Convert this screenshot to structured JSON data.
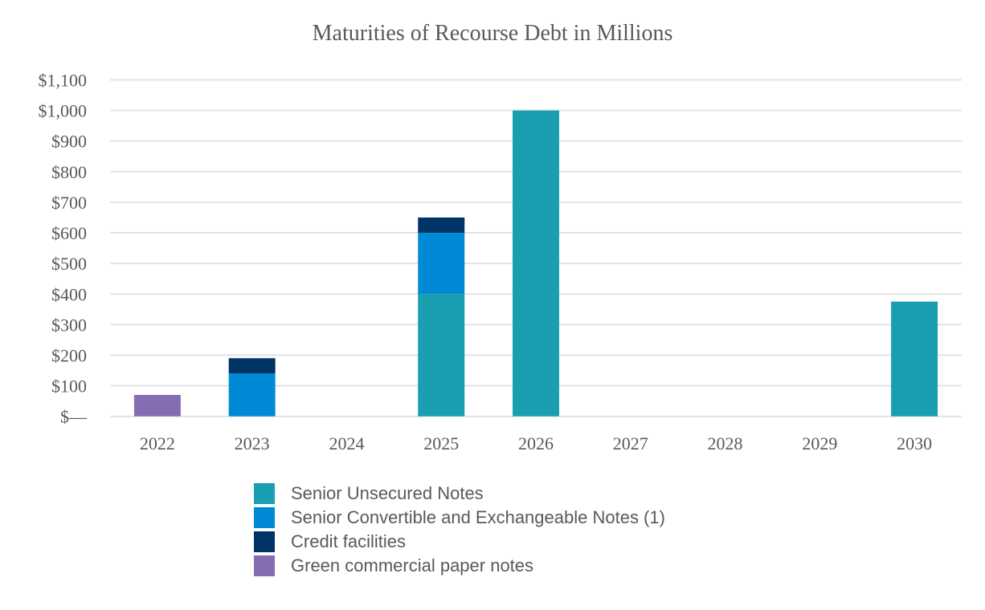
{
  "chart_data": {
    "type": "bar",
    "stacked": true,
    "title": "Maturities of Recourse Debt in Millions",
    "xlabel": "",
    "ylabel": "",
    "categories": [
      "2022",
      "2023",
      "2024",
      "2025",
      "2026",
      "2027",
      "2028",
      "2029",
      "2030"
    ],
    "series": [
      {
        "name": "Senior Unsecured Notes",
        "color": "#1a9fb0",
        "values": [
          0,
          0,
          0,
          400,
          1000,
          0,
          0,
          0,
          375
        ]
      },
      {
        "name": "Senior Convertible and Exchangeable Notes (1)",
        "color": "#0089d4",
        "values": [
          0,
          140,
          0,
          200,
          0,
          0,
          0,
          0,
          0
        ]
      },
      {
        "name": "Credit facilities",
        "color": "#003366",
        "values": [
          0,
          50,
          0,
          50,
          0,
          0,
          0,
          0,
          0
        ]
      },
      {
        "name": "Green commercial paper notes",
        "color": "#866db1",
        "values": [
          70,
          0,
          0,
          0,
          0,
          0,
          0,
          0,
          0
        ]
      }
    ],
    "ylim": [
      0,
      1100
    ],
    "yticks": [
      0,
      100,
      200,
      300,
      400,
      500,
      600,
      700,
      800,
      900,
      1000,
      1100
    ],
    "ytick_labels": [
      "$—",
      "$100",
      "$200",
      "$300",
      "$400",
      "$500",
      "$600",
      "$700",
      "$800",
      "$900",
      "$1,000",
      "$1,100"
    ],
    "grid": true,
    "legend_position": "bottom"
  }
}
